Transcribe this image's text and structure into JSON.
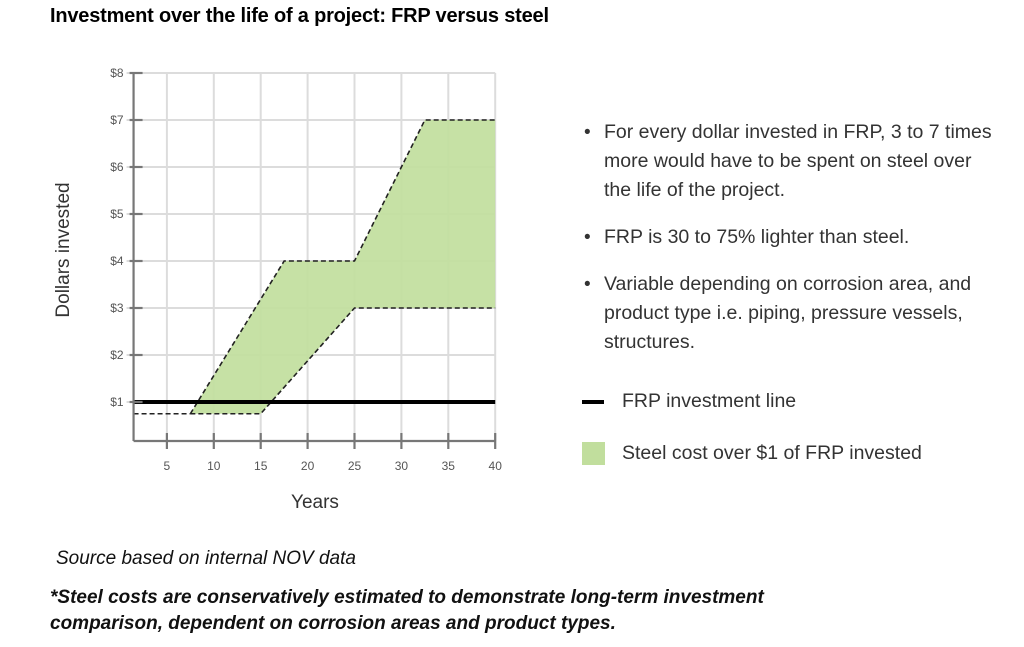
{
  "title": "Investment over the life of a project: FRP versus steel",
  "chart_data": {
    "type": "area",
    "title": "Investment over the life of a project: FRP versus steel",
    "xlabel": "Years",
    "ylabel": "Dollars invested",
    "xlim": [
      0.7,
      40
    ],
    "ylim": [
      0.17,
      8
    ],
    "grid": true,
    "x_ticks": [
      5,
      10,
      15,
      20,
      25,
      30,
      35,
      40
    ],
    "x_tick_labels": [
      "5",
      "10",
      "15",
      "20",
      "25",
      "30",
      "35",
      "40"
    ],
    "y_ticks": [
      1,
      2,
      3,
      4,
      5,
      6,
      7,
      8
    ],
    "y_tick_labels": [
      "$1",
      "$2",
      "$3",
      "$4",
      "$5",
      "$6",
      "$7",
      "$8"
    ],
    "series": [
      {
        "name": "FRP investment line",
        "kind": "line",
        "color": "#000000",
        "x": [
          0.7,
          40
        ],
        "y": [
          1,
          1
        ]
      },
      {
        "name": "Steel cost over $1 of FRP invested",
        "kind": "band",
        "color": "#c1de9d",
        "upper": {
          "x": [
            7.5,
            17.5,
            25,
            32.5,
            40
          ],
          "y": [
            0.75,
            4,
            4,
            7,
            7
          ]
        },
        "lower": {
          "x": [
            7.5,
            15,
            25,
            40
          ],
          "y": [
            0.75,
            0.75,
            3,
            3
          ]
        }
      },
      {
        "name": "Steel baseline (dashed)",
        "kind": "dashed-line",
        "color": "#000000",
        "x": [
          0.7,
          7.5
        ],
        "y": [
          0.75,
          0.75
        ]
      }
    ],
    "legend": {
      "placement": "right",
      "entries": [
        "FRP investment line",
        "Steel cost over $1 of FRP invested"
      ]
    }
  },
  "bullets": [
    "For every dollar invested in FRP, 3 to 7 times more would have to be spent on steel over the life of the project.",
    "FRP is 30 to 75% lighter than steel.",
    "Variable depending on corrosion area, and product type i.e. piping, pressure vessels, structures."
  ],
  "bullet_glyph": "•",
  "legend": {
    "line_label": "FRP investment line",
    "area_label": "Steel cost over $1 of FRP invested"
  },
  "source": "Source based on internal NOV data",
  "note": "*Steel costs are conservatively estimated to demonstrate long-term investment comparison, dependent on corrosion areas and product types."
}
